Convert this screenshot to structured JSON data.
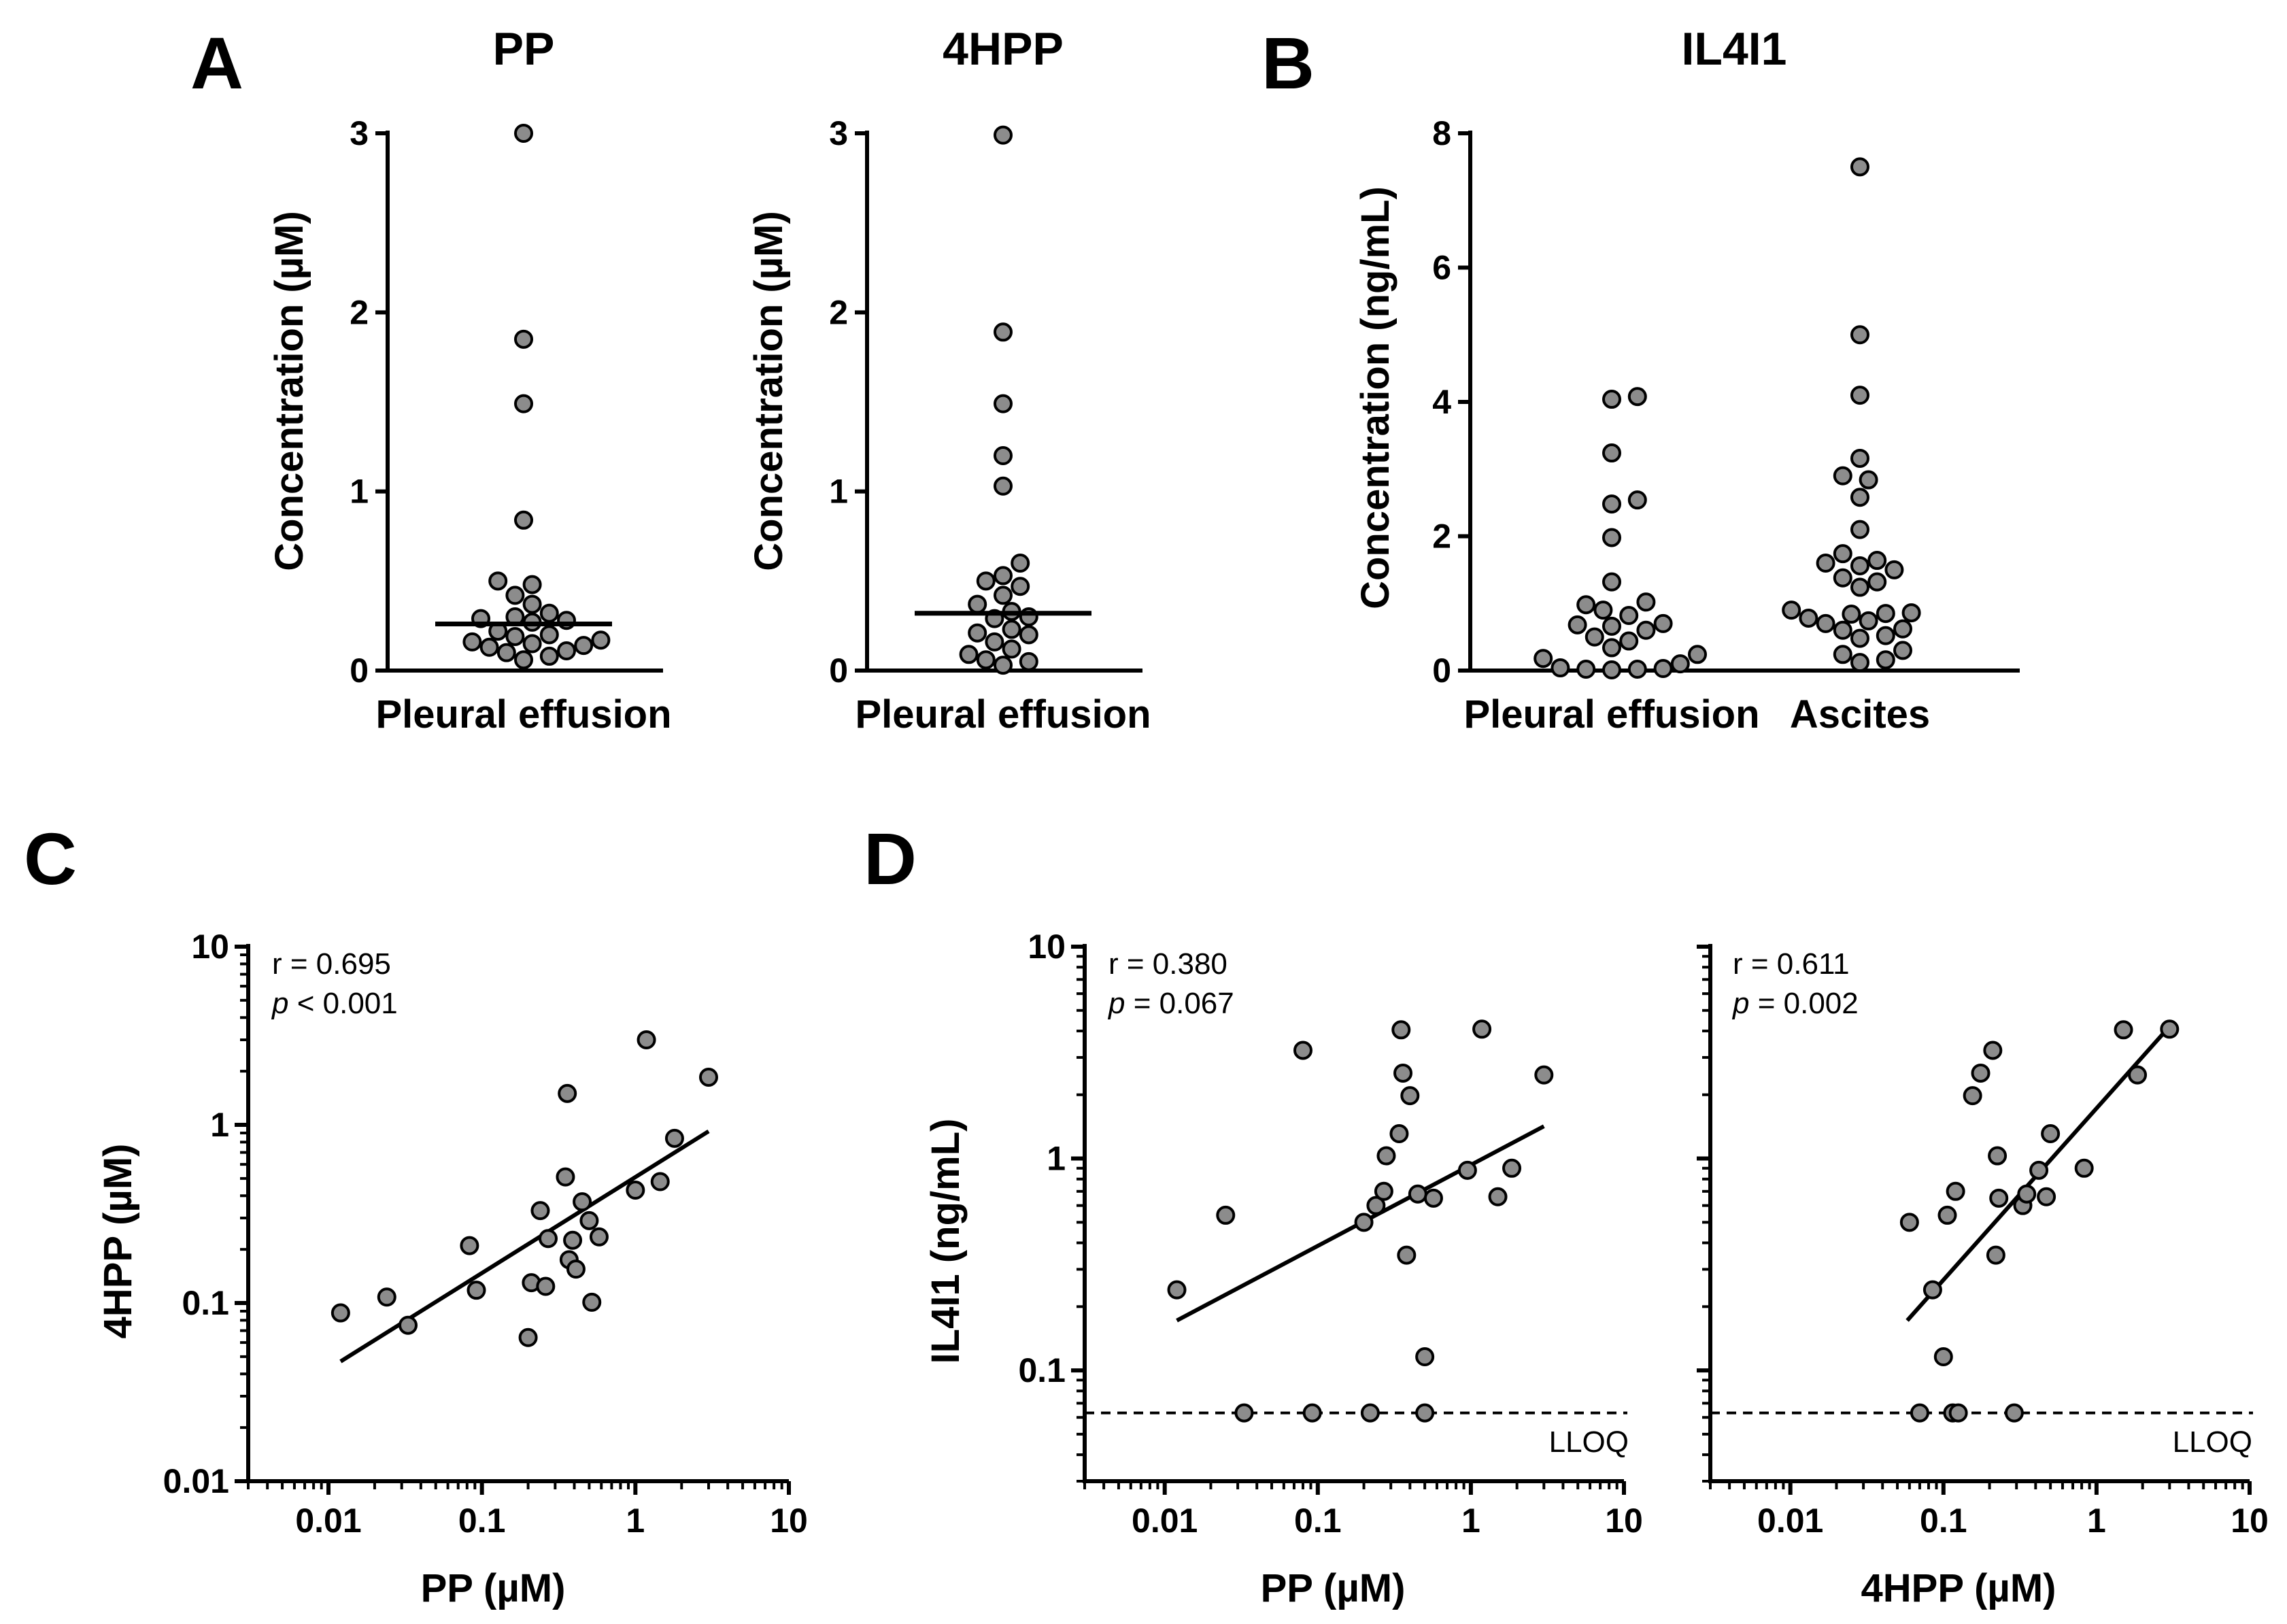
{
  "panel_letters": [
    "A",
    "B",
    "C",
    "D"
  ],
  "chart_data": [
    {
      "id": "pp",
      "type": "scatter",
      "title": "PP",
      "ylabel": "Concentration (µM)",
      "categories": [
        "Pleural effusion"
      ],
      "ylim": [
        0,
        3
      ],
      "yticks": [
        "0",
        "1",
        "2",
        "3"
      ],
      "series": [
        {
          "name": "Pleural effusion",
          "median": 0.26,
          "values": [
            3.0,
            1.85,
            1.49,
            0.84,
            0.5,
            0.48,
            0.42,
            0.37,
            0.32,
            0.3,
            0.29,
            0.28,
            0.27,
            0.22,
            0.2,
            0.19,
            0.17,
            0.16,
            0.15,
            0.14,
            0.13,
            0.11,
            0.1,
            0.08,
            0.06
          ]
        }
      ]
    },
    {
      "id": "hpp",
      "type": "scatter",
      "title": "4HPP",
      "ylabel": "Concentration (µM)",
      "categories": [
        "Pleural effusion"
      ],
      "ylim": [
        0,
        3
      ],
      "yticks": [
        "0",
        "1",
        "2",
        "3"
      ],
      "series": [
        {
          "name": "Pleural effusion",
          "median": 0.32,
          "values": [
            2.99,
            1.89,
            1.49,
            1.2,
            1.03,
            0.6,
            0.53,
            0.5,
            0.47,
            0.42,
            0.37,
            0.33,
            0.3,
            0.29,
            0.23,
            0.21,
            0.2,
            0.16,
            0.12,
            0.09,
            0.06,
            0.05,
            0.03
          ]
        }
      ]
    },
    {
      "id": "il4i1",
      "type": "scatter",
      "title": "IL4I1",
      "ylabel": "Concentration (ng/mL)",
      "categories": [
        "Pleural effusion",
        "Ascites"
      ],
      "ylim": [
        0,
        8
      ],
      "yticks": [
        "0",
        "2",
        "4",
        "6",
        "8"
      ],
      "series": [
        {
          "name": "Pleural effusion",
          "values": [
            4.08,
            4.04,
            3.24,
            2.54,
            2.48,
            1.98,
            1.32,
            1.02,
            0.98,
            0.9,
            0.82,
            0.7,
            0.68,
            0.66,
            0.6,
            0.5,
            0.44,
            0.34,
            0.24,
            0.18,
            0.1,
            0.04,
            0.03,
            0.02,
            0.02,
            0.01
          ]
        },
        {
          "name": "Ascites",
          "values": [
            7.5,
            5.0,
            4.1,
            3.16,
            2.9,
            2.84,
            2.58,
            2.1,
            1.74,
            1.64,
            1.6,
            1.56,
            1.5,
            1.38,
            1.32,
            1.24,
            0.9,
            0.86,
            0.85,
            0.84,
            0.78,
            0.74,
            0.7,
            0.62,
            0.6,
            0.52,
            0.48,
            0.3,
            0.24,
            0.16,
            0.12
          ]
        }
      ]
    },
    {
      "id": "c",
      "type": "scatter",
      "xscale": "log",
      "yscale": "log",
      "xlabel": "PP (µM)",
      "ylabel": "4HPP (µM)",
      "xlim": [
        0.003,
        10
      ],
      "ylim": [
        0.01,
        10
      ],
      "xticks": [
        "0.01",
        "0.1",
        "1",
        "10"
      ],
      "yticks": [
        "0.01",
        "0.1",
        "1",
        "10"
      ],
      "stat_r": "r = 0.695",
      "stat_p_label": "p",
      "stat_p_value": " < 0.001",
      "points": [
        [
          0.012,
          0.088
        ],
        [
          0.024,
          0.108
        ],
        [
          0.033,
          0.075
        ],
        [
          0.083,
          0.21
        ],
        [
          0.092,
          0.118
        ],
        [
          0.2,
          0.064
        ],
        [
          0.21,
          0.13
        ],
        [
          0.24,
          0.33
        ],
        [
          0.26,
          0.124
        ],
        [
          0.27,
          0.23
        ],
        [
          0.35,
          0.51
        ],
        [
          0.36,
          1.5
        ],
        [
          0.37,
          0.175
        ],
        [
          0.39,
          0.225
        ],
        [
          0.41,
          0.155
        ],
        [
          0.45,
          0.37
        ],
        [
          0.5,
          0.29
        ],
        [
          0.52,
          0.101
        ],
        [
          0.58,
          0.235
        ],
        [
          1.0,
          0.43
        ],
        [
          1.18,
          3.0
        ],
        [
          1.45,
          0.48
        ],
        [
          1.8,
          0.84
        ],
        [
          3.0,
          1.85
        ]
      ],
      "fit": [
        [
          0.012,
          0.047
        ],
        [
          3.0,
          0.92
        ]
      ]
    },
    {
      "id": "d1",
      "type": "scatter",
      "xscale": "log",
      "yscale": "log",
      "xlabel": "PP (µM)",
      "ylabel": "IL4I1 (ng/mL)",
      "xlim": [
        0.003,
        10
      ],
      "ylim": [
        0.03,
        10
      ],
      "xticks": [
        "0.01",
        "0.1",
        "1",
        "10"
      ],
      "yticks": [
        "0.1",
        "1",
        "10"
      ],
      "stat_r": "r = 0.380",
      "stat_p_label": "p",
      "stat_p_value": " = 0.067",
      "lloq_label": "LLOQ",
      "lloq_value": 0.063,
      "points": [
        [
          0.012,
          0.24
        ],
        [
          0.025,
          0.54
        ],
        [
          0.033,
          0.063
        ],
        [
          0.08,
          3.24
        ],
        [
          0.092,
          0.063
        ],
        [
          0.2,
          0.5
        ],
        [
          0.22,
          0.063
        ],
        [
          0.24,
          0.6
        ],
        [
          0.27,
          0.7
        ],
        [
          0.28,
          1.03
        ],
        [
          0.34,
          1.31
        ],
        [
          0.35,
          4.05
        ],
        [
          0.36,
          2.53
        ],
        [
          0.38,
          0.35
        ],
        [
          0.4,
          1.98
        ],
        [
          0.45,
          0.68
        ],
        [
          0.5,
          0.116
        ],
        [
          0.5,
          0.063
        ],
        [
          0.57,
          0.65
        ],
        [
          0.95,
          0.88
        ],
        [
          1.18,
          4.08
        ],
        [
          1.5,
          0.66
        ],
        [
          1.85,
          0.9
        ],
        [
          3.0,
          2.48
        ]
      ],
      "fit": [
        [
          0.012,
          0.172
        ],
        [
          3.0,
          1.42
        ]
      ]
    },
    {
      "id": "d2",
      "type": "scatter",
      "xscale": "log",
      "yscale": "log",
      "xlabel": "4HPP (µM)",
      "ylabel": "",
      "xlim": [
        0.003,
        10
      ],
      "ylim": [
        0.03,
        10
      ],
      "xticks": [
        "0.01",
        "0.1",
        "1",
        "10"
      ],
      "yticks": [],
      "stat_r": "r = 0.611",
      "stat_p_label": "p",
      "stat_p_value": " = 0.002",
      "lloq_label": "LLOQ",
      "lloq_value": 0.063,
      "points": [
        [
          0.06,
          0.5
        ],
        [
          0.07,
          0.063
        ],
        [
          0.085,
          0.24
        ],
        [
          0.1,
          0.116
        ],
        [
          0.106,
          0.54
        ],
        [
          0.115,
          0.063
        ],
        [
          0.12,
          0.7
        ],
        [
          0.125,
          0.063
        ],
        [
          0.155,
          1.98
        ],
        [
          0.175,
          2.53
        ],
        [
          0.21,
          3.24
        ],
        [
          0.22,
          0.35
        ],
        [
          0.225,
          1.03
        ],
        [
          0.23,
          0.65
        ],
        [
          0.29,
          0.063
        ],
        [
          0.33,
          0.6
        ],
        [
          0.35,
          0.68
        ],
        [
          0.42,
          0.88
        ],
        [
          0.47,
          0.66
        ],
        [
          0.5,
          1.31
        ],
        [
          0.83,
          0.9
        ],
        [
          1.5,
          4.05
        ],
        [
          1.85,
          2.48
        ],
        [
          3.0,
          4.08
        ]
      ],
      "fit": [
        [
          0.058,
          0.172
        ],
        [
          3.0,
          4.2
        ]
      ]
    }
  ]
}
